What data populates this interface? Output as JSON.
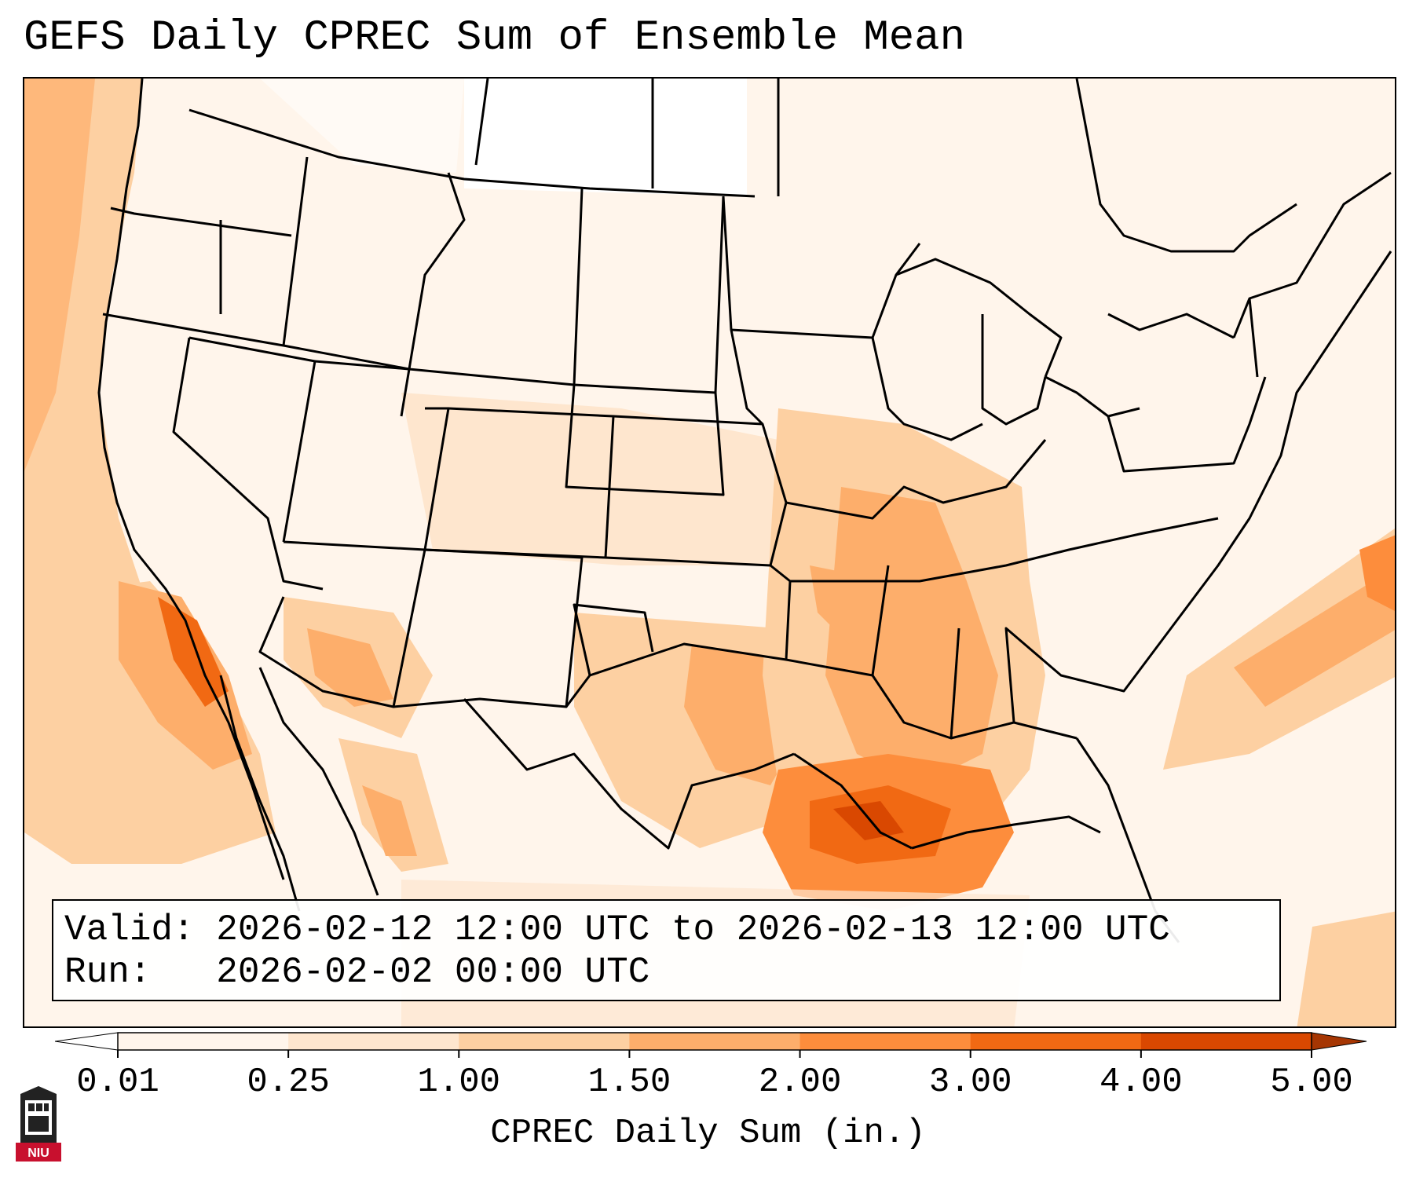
{
  "title": "GEFS Daily CPREC Sum of Ensemble Mean",
  "info": {
    "valid_label": "Valid:",
    "valid_value": "2026-02-12 12:00 UTC to 2026-02-13 12:00 UTC",
    "run_label": "Run:",
    "run_value": "2026-02-02 00:00 UTC"
  },
  "colorbar": {
    "label": "CPREC Daily Sum (in.)",
    "ticks": [
      "0.01",
      "0.25",
      "1.00",
      "1.50",
      "2.00",
      "3.00",
      "4.00",
      "5.00"
    ],
    "colors": [
      "#fff5eb",
      "#fee6ce",
      "#fdd0a2",
      "#fdae6b",
      "#fd8d3c",
      "#f16913",
      "#d94801"
    ],
    "extend_colors": {
      "under": "#ffffff",
      "over": "#a63603"
    }
  },
  "logo": {
    "text": "NIU",
    "icon": "niu-tower-logo-icon"
  },
  "colors": {
    "background": "#fff7ef",
    "outline": "#000000"
  }
}
